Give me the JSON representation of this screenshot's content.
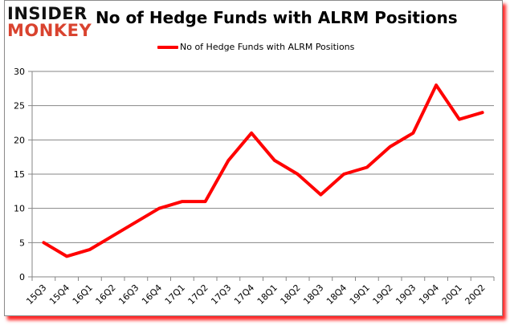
{
  "header": {
    "logo_line1": "INSIDER",
    "logo_line2": "MONKEY",
    "title": "No of Hedge Funds with ALRM Positions"
  },
  "legend": {
    "label": "No of Hedge Funds with ALRM Positions",
    "color": "#ff0000"
  },
  "colors": {
    "line": "#ff0000",
    "grid": "#868686",
    "logo_top": "#111111",
    "logo_bottom": "#d9432f",
    "shadow": "#ff0000"
  },
  "chart_data": {
    "type": "line",
    "title": "No of Hedge Funds with ALRM Positions",
    "xlabel": "",
    "ylabel": "",
    "categories": [
      "15Q3",
      "15Q4",
      "16Q1",
      "16Q2",
      "16Q3",
      "16Q4",
      "17Q1",
      "17Q2",
      "17Q3",
      "17Q4",
      "18Q1",
      "18Q2",
      "18Q3",
      "18Q4",
      "19Q1",
      "19Q2",
      "19Q3",
      "19Q4",
      "20Q1",
      "20Q2"
    ],
    "series": [
      {
        "name": "No of Hedge Funds with ALRM Positions",
        "values": [
          5,
          3,
          4,
          6,
          8,
          10,
          11,
          11,
          17,
          21,
          17,
          15,
          12,
          15,
          16,
          19,
          21,
          28,
          23,
          24
        ]
      }
    ],
    "ylim": [
      0,
      30
    ],
    "yticks": [
      0,
      5,
      10,
      15,
      20,
      25,
      30
    ],
    "grid": true,
    "legend_position": "top"
  }
}
